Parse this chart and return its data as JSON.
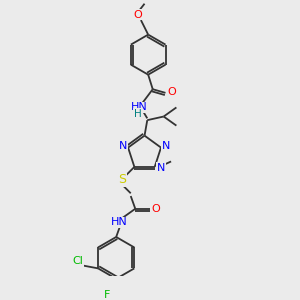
{
  "bg_color": "#ebebeb",
  "atom_colors": {
    "N": "#0000ff",
    "O": "#ff0000",
    "S": "#cccc00",
    "Cl": "#00bb00",
    "F": "#00bb00",
    "C": "#333333",
    "H": "#008080"
  },
  "bond_color": "#333333",
  "fig_size": [
    3.0,
    3.0
  ],
  "dpi": 100,
  "lw": 1.3
}
